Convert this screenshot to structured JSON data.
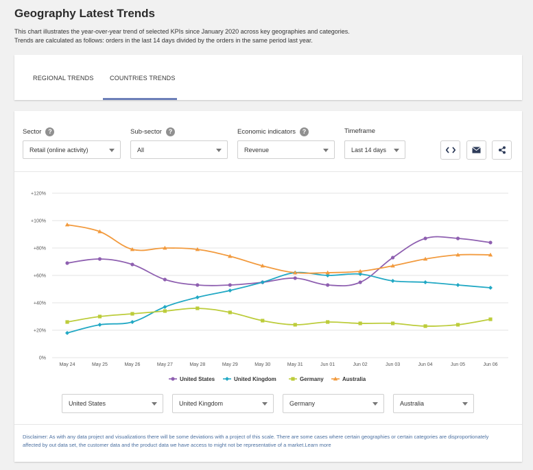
{
  "header": {
    "title": "Geography Latest Trends",
    "description_line1": "This chart illustrates the year-over-year trend of selected KPIs since January 2020 across key geographies and categories.",
    "description_line2": "Trends are calculated as follows: orders in the last 14 days divided by the orders in the same period last year."
  },
  "tabs": [
    {
      "label": "REGIONAL TRENDS",
      "active": false
    },
    {
      "label": "COUNTRIES TRENDS",
      "active": true
    }
  ],
  "filters": {
    "sector": {
      "label": "Sector",
      "value": "Retail (online activity)"
    },
    "subsector": {
      "label": "Sub-sector",
      "value": "All"
    },
    "economic": {
      "label": "Economic indicators",
      "value": "Revenue"
    },
    "timeframe": {
      "label": "Timeframe",
      "value": "Last 14 days"
    }
  },
  "actions": [
    {
      "name": "embed-code",
      "icon": "code-icon"
    },
    {
      "name": "email",
      "icon": "envelope-icon"
    },
    {
      "name": "share",
      "icon": "share-icon"
    }
  ],
  "chart_data": {
    "type": "line",
    "title": "",
    "xlabel": "",
    "ylabel": "",
    "categories": [
      "May 24",
      "May 25",
      "May 26",
      "May 27",
      "May 28",
      "May 29",
      "May 30",
      "May 31",
      "Jun 01",
      "Jun 02",
      "Jun 03",
      "Jun 04",
      "Jun 05",
      "Jun 06"
    ],
    "ylim": [
      0,
      120
    ],
    "yticks": [
      "0%",
      "+20%",
      "+40%",
      "+60%",
      "+80%",
      "+100%",
      "+120%"
    ],
    "grid": true,
    "legend_position": "bottom",
    "series": [
      {
        "name": "United States",
        "color": "#8e5fb0",
        "marker": "circle",
        "values": [
          69,
          72,
          68,
          57,
          53,
          53,
          55,
          58,
          53,
          55,
          73,
          87,
          87,
          84
        ]
      },
      {
        "name": "United Kingdom",
        "color": "#21a8c4",
        "marker": "diamond",
        "values": [
          18,
          24,
          26,
          37,
          44,
          49,
          55,
          62,
          60,
          61,
          56,
          55,
          53,
          51
        ]
      },
      {
        "name": "Germany",
        "color": "#bccc3a",
        "marker": "square",
        "values": [
          26,
          30,
          32,
          34,
          36,
          33,
          27,
          24,
          26,
          25,
          25,
          23,
          24,
          28
        ]
      },
      {
        "name": "Australia",
        "color": "#f29a3d",
        "marker": "triangle",
        "values": [
          97,
          92,
          79,
          80,
          79,
          74,
          67,
          62,
          62,
          63,
          67,
          72,
          75,
          75
        ]
      }
    ]
  },
  "country_selects": [
    "United States",
    "United Kingdom",
    "Germany",
    "Australia"
  ],
  "disclaimer": "Disclaimer: As with any data project and visualizations there will be some deviations with a project of this scale. There are some cases where certain geographies or certain categories are disproportionately affected by out data set, the customer data and the product data we have access to might not be representative of a market.",
  "learn_more": "Learn more"
}
